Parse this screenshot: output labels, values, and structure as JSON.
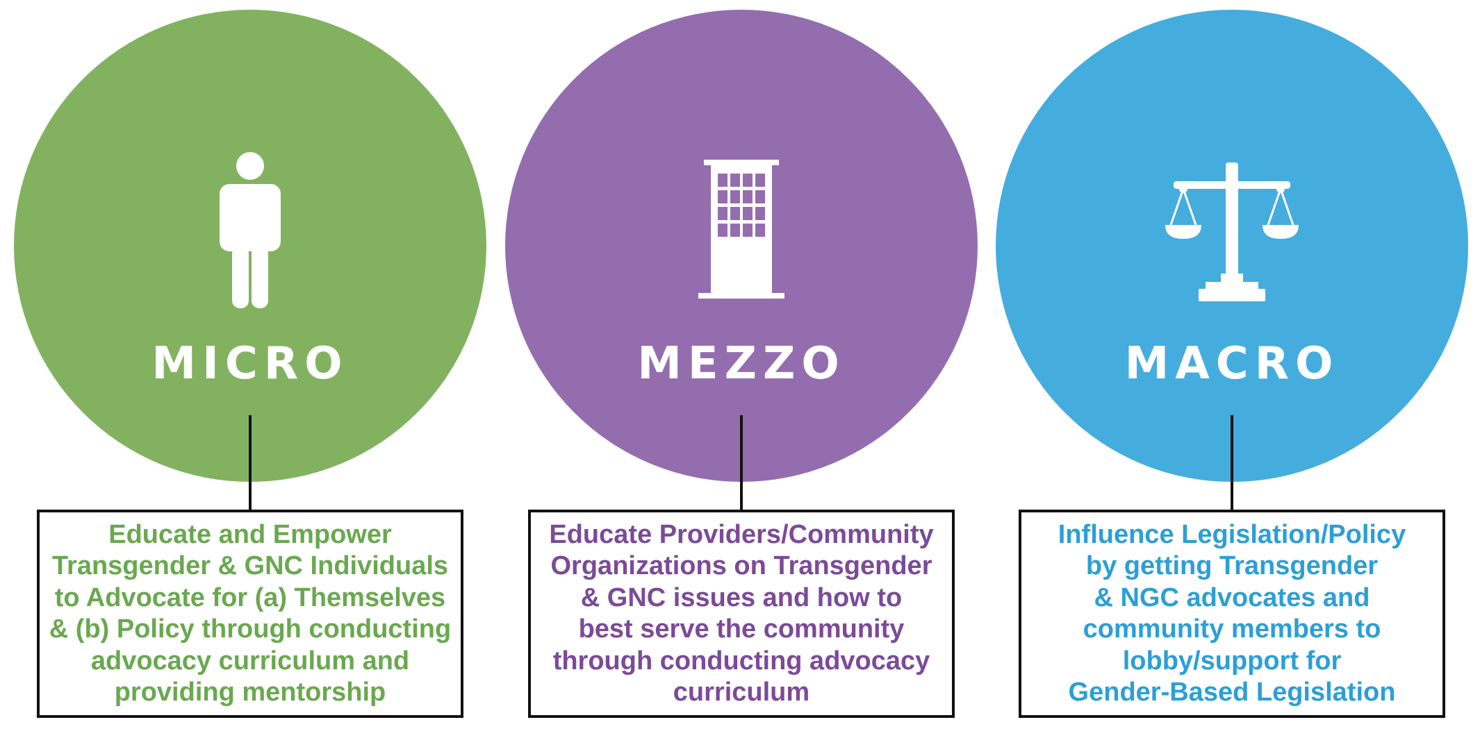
{
  "levels": [
    {
      "label": "MICRO",
      "icon": "person-icon",
      "color": "#82b25f",
      "text_color": "#6aa84f",
      "description": "Educate and Empower\nTransgender & GNC Individuals\nto Advocate for (a) Themselves\n& (b) Policy through conducting\nadvocacy curriculum and\nproviding mentorship"
    },
    {
      "label": "MEZZO",
      "icon": "building-icon",
      "color": "#946daf",
      "text_color": "#7b4a98",
      "description": "Educate Providers/Community\nOrganizations on Transgender\n& GNC issues and how to\nbest serve the community\nthrough conducting advocacy\ncurriculum"
    },
    {
      "label": "MACRO",
      "icon": "scales-of-justice-icon",
      "color": "#44addd",
      "text_color": "#2b9fd6",
      "description": "Influence Legislation/Policy\nby getting Transgender\n& NGC advocates and\ncommunity members to\nlobby/support for\nGender-Based Legislation"
    }
  ]
}
